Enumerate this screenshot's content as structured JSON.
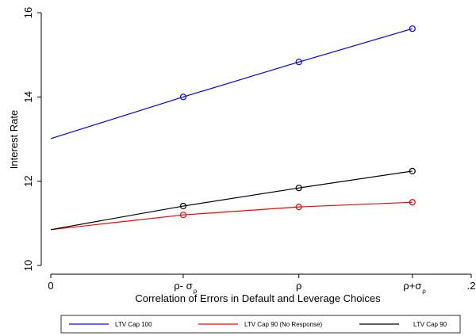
{
  "chart_data": {
    "type": "line",
    "x_label": "Correlation of Errors in Default and Leverage Choices",
    "y_label": "Interest Rate",
    "x": [
      0,
      0.063,
      0.118,
      0.172
    ],
    "markers_shown": [
      false,
      true,
      true,
      true
    ],
    "series": [
      {
        "name": "LTV Cap 100",
        "color": "#0000ff",
        "values": [
          13.01,
          14.0,
          14.83,
          15.62
        ]
      },
      {
        "name": "LTV Cap 90  (No Response)",
        "color": "#ff0000",
        "values": [
          10.85,
          11.2,
          11.39,
          11.5
        ]
      },
      {
        "name": "LTV Cap 90",
        "color": "#000000",
        "values": [
          10.85,
          11.41,
          11.84,
          12.24
        ]
      }
    ],
    "xlim": [
      0,
      0.2
    ],
    "xticks": [
      0,
      {
        "value": 0.063,
        "label": "ρ- σ",
        "sub": "ρ"
      },
      {
        "value": 0.118,
        "label": "ρ"
      },
      {
        "value": 0.172,
        "label": "ρ+σ",
        "sub": "ρ"
      },
      {
        "value": 0.2,
        "label": ".2"
      }
    ],
    "ylim": [
      10,
      16
    ],
    "yticks": [
      10,
      12,
      14,
      16
    ],
    "legend": "bottom"
  }
}
